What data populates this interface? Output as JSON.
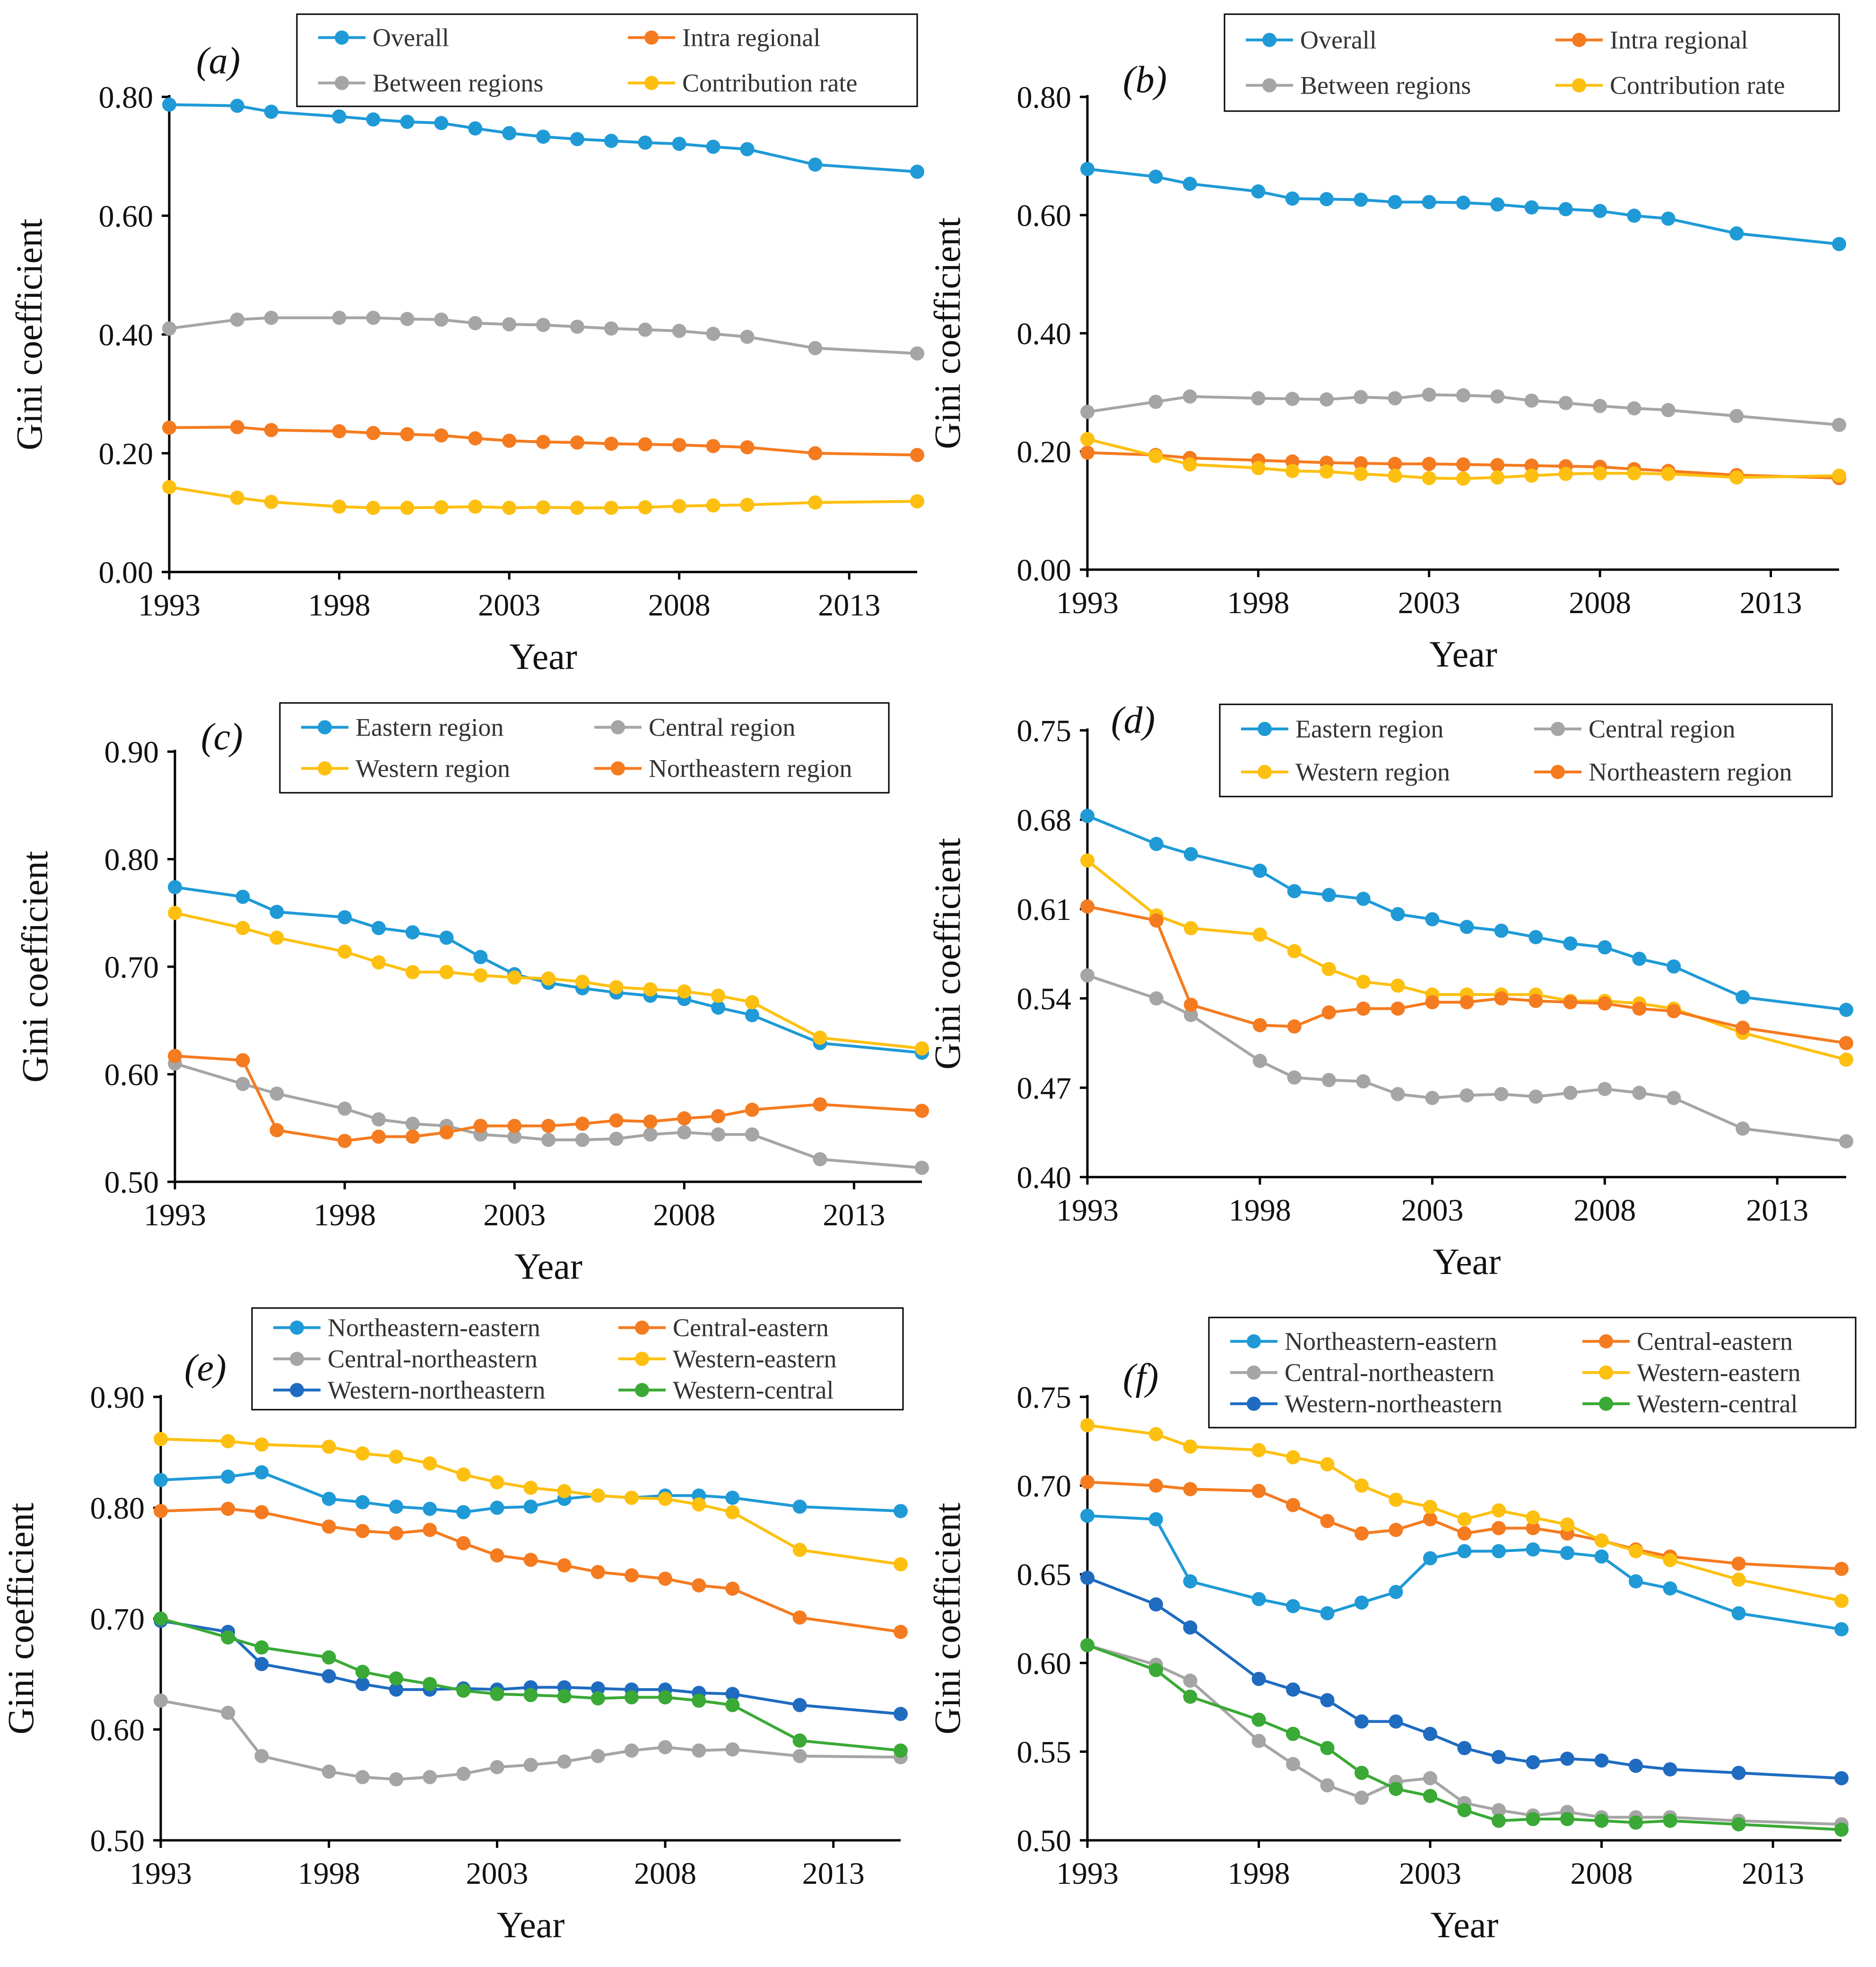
{
  "chart_data": [
    {
      "id": "a",
      "panel_label": "(a)",
      "type": "line",
      "xlabel": "Year",
      "ylabel": "Gini coefficient",
      "xlim": [
        1993,
        2015
      ],
      "ylim": [
        0.0,
        0.8
      ],
      "xticks": [
        1993,
        1998,
        2003,
        2008,
        2013
      ],
      "yticks": [
        0.0,
        0.2,
        0.4,
        0.6,
        0.8
      ],
      "ytick_labels": [
        "0.00",
        "0.20",
        "0.40",
        "0.60",
        "0.80"
      ],
      "legend_columns": 2,
      "x": [
        1993,
        1995,
        1996,
        1998,
        1999,
        2000,
        2001,
        2002,
        2003,
        2004,
        2005,
        2006,
        2007,
        2008,
        2009,
        2010,
        2012,
        2015
      ],
      "series": [
        {
          "name": "Overall",
          "color": "#1f9ad6",
          "values": [
            0.787,
            0.785,
            0.775,
            0.767,
            0.762,
            0.758,
            0.756,
            0.747,
            0.739,
            0.733,
            0.729,
            0.726,
            0.723,
            0.721,
            0.716,
            0.712,
            0.686,
            0.674
          ]
        },
        {
          "name": "Intra regional",
          "color": "#f47b20",
          "values": [
            0.243,
            0.244,
            0.239,
            0.237,
            0.234,
            0.232,
            0.23,
            0.225,
            0.221,
            0.219,
            0.218,
            0.216,
            0.215,
            0.214,
            0.212,
            0.21,
            0.2,
            0.197
          ]
        },
        {
          "name": "Between regions",
          "color": "#a5a5a5",
          "values": [
            0.41,
            0.425,
            0.428,
            0.428,
            0.428,
            0.426,
            0.425,
            0.419,
            0.417,
            0.416,
            0.413,
            0.41,
            0.408,
            0.406,
            0.401,
            0.396,
            0.377,
            0.368
          ]
        },
        {
          "name": "Contribution rate",
          "color": "#fdc010",
          "values": [
            0.143,
            0.125,
            0.118,
            0.11,
            0.108,
            0.108,
            0.109,
            0.11,
            0.108,
            0.109,
            0.108,
            0.108,
            0.109,
            0.111,
            0.112,
            0.113,
            0.117,
            0.119
          ]
        }
      ]
    },
    {
      "id": "b",
      "panel_label": "(b)",
      "type": "line",
      "xlabel": "Year",
      "ylabel": "Gini coefficient",
      "xlim": [
        1993,
        2015
      ],
      "ylim": [
        0.0,
        0.8
      ],
      "xticks": [
        1993,
        1998,
        2003,
        2008,
        2013
      ],
      "yticks": [
        0.0,
        0.2,
        0.4,
        0.6,
        0.8
      ],
      "ytick_labels": [
        "0.00",
        "0.20",
        "0.40",
        "0.60",
        "0.80"
      ],
      "legend_columns": 2,
      "x": [
        1993,
        1995,
        1996,
        1998,
        1999,
        2000,
        2001,
        2002,
        2003,
        2004,
        2005,
        2006,
        2007,
        2008,
        2009,
        2010,
        2012,
        2015
      ],
      "series": [
        {
          "name": "Overall",
          "color": "#1f9ad6",
          "values": [
            0.678,
            0.665,
            0.653,
            0.64,
            0.628,
            0.627,
            0.626,
            0.622,
            0.622,
            0.621,
            0.618,
            0.613,
            0.61,
            0.607,
            0.599,
            0.594,
            0.569,
            0.551
          ]
        },
        {
          "name": "Intra regional",
          "color": "#f47b20",
          "values": [
            0.198,
            0.194,
            0.189,
            0.185,
            0.183,
            0.181,
            0.18,
            0.179,
            0.179,
            0.178,
            0.177,
            0.176,
            0.175,
            0.174,
            0.17,
            0.167,
            0.16,
            0.155
          ]
        },
        {
          "name": "Between regions",
          "color": "#a5a5a5",
          "values": [
            0.267,
            0.284,
            0.293,
            0.29,
            0.289,
            0.288,
            0.292,
            0.29,
            0.296,
            0.295,
            0.293,
            0.286,
            0.282,
            0.277,
            0.273,
            0.27,
            0.26,
            0.245
          ]
        },
        {
          "name": "Contribution rate",
          "color": "#fdc010",
          "values": [
            0.221,
            0.192,
            0.178,
            0.172,
            0.167,
            0.166,
            0.162,
            0.159,
            0.155,
            0.154,
            0.156,
            0.159,
            0.162,
            0.163,
            0.163,
            0.162,
            0.156,
            0.159
          ]
        }
      ]
    },
    {
      "id": "c",
      "panel_label": "(c)",
      "type": "line",
      "xlabel": "Year",
      "ylabel": "Gini coefficient",
      "xlim": [
        1993,
        2015
      ],
      "ylim": [
        0.5,
        0.9
      ],
      "xticks": [
        1993,
        1998,
        2003,
        2008,
        2013
      ],
      "yticks": [
        0.5,
        0.6,
        0.7,
        0.8,
        0.9
      ],
      "ytick_labels": [
        "0.50",
        "0.60",
        "0.70",
        "0.80",
        "0.90"
      ],
      "legend_columns": 2,
      "x": [
        1993,
        1995,
        1996,
        1998,
        1999,
        2000,
        2001,
        2002,
        2003,
        2004,
        2005,
        2006,
        2007,
        2008,
        2009,
        2010,
        2012,
        2015
      ],
      "series": [
        {
          "name": "Eastern region",
          "color": "#1f9ad6",
          "values": [
            0.774,
            0.765,
            0.751,
            0.746,
            0.736,
            0.732,
            0.727,
            0.709,
            0.693,
            0.685,
            0.68,
            0.676,
            0.673,
            0.67,
            0.662,
            0.655,
            0.629,
            0.62
          ]
        },
        {
          "name": "Central region",
          "color": "#a5a5a5",
          "values": [
            0.61,
            0.591,
            0.582,
            0.568,
            0.558,
            0.554,
            0.552,
            0.544,
            0.542,
            0.539,
            0.539,
            0.54,
            0.544,
            0.546,
            0.544,
            0.544,
            0.521,
            0.513
          ]
        },
        {
          "name": "Western region",
          "color": "#fdc010",
          "values": [
            0.75,
            0.736,
            0.727,
            0.714,
            0.704,
            0.695,
            0.695,
            0.692,
            0.69,
            0.689,
            0.686,
            0.681,
            0.679,
            0.677,
            0.673,
            0.667,
            0.634,
            0.624
          ]
        },
        {
          "name": "Northeastern region",
          "color": "#f47b20",
          "values": [
            0.617,
            0.613,
            0.548,
            0.538,
            0.542,
            0.542,
            0.546,
            0.552,
            0.552,
            0.552,
            0.554,
            0.557,
            0.556,
            0.559,
            0.561,
            0.567,
            0.572,
            0.566
          ]
        }
      ]
    },
    {
      "id": "d",
      "panel_label": "(d)",
      "type": "line",
      "xlabel": "Year",
      "ylabel": "Gini coefficient",
      "xlim": [
        1993,
        2015
      ],
      "ylim": [
        0.4,
        0.75
      ],
      "xticks": [
        1993,
        1998,
        2003,
        2008,
        2013
      ],
      "yticks": [
        0.4,
        0.47,
        0.54,
        0.61,
        0.68,
        0.75
      ],
      "ytick_labels": [
        "0.40",
        "0.47",
        "0.54",
        "0.61",
        "0.68",
        "0.75"
      ],
      "legend_columns": 2,
      "x": [
        1993,
        1995,
        1996,
        1998,
        1999,
        2000,
        2001,
        2002,
        2003,
        2004,
        2005,
        2006,
        2007,
        2008,
        2009,
        2010,
        2012,
        2015
      ],
      "series": [
        {
          "name": "Eastern region",
          "color": "#1f9ad6",
          "values": [
            0.683,
            0.661,
            0.653,
            0.64,
            0.624,
            0.621,
            0.618,
            0.606,
            0.602,
            0.596,
            0.593,
            0.588,
            0.583,
            0.58,
            0.571,
            0.565,
            0.541,
            0.531
          ]
        },
        {
          "name": "Central region",
          "color": "#a5a5a5",
          "values": [
            0.558,
            0.54,
            0.527,
            0.491,
            0.478,
            0.476,
            0.475,
            0.465,
            0.462,
            0.464,
            0.465,
            0.463,
            0.466,
            0.469,
            0.466,
            0.462,
            0.438,
            0.428
          ]
        },
        {
          "name": "Western region",
          "color": "#fdc010",
          "values": [
            0.648,
            0.605,
            0.595,
            0.59,
            0.577,
            0.563,
            0.553,
            0.55,
            0.543,
            0.543,
            0.543,
            0.543,
            0.538,
            0.538,
            0.536,
            0.532,
            0.513,
            0.492
          ]
        },
        {
          "name": "Northeastern region",
          "color": "#f47b20",
          "values": [
            0.612,
            0.601,
            0.535,
            0.519,
            0.518,
            0.529,
            0.532,
            0.532,
            0.537,
            0.537,
            0.54,
            0.538,
            0.537,
            0.536,
            0.532,
            0.53,
            0.517,
            0.505
          ]
        }
      ]
    },
    {
      "id": "e",
      "panel_label": "(e)",
      "type": "line",
      "xlabel": "Year",
      "ylabel": "Gini coefficient",
      "xlim": [
        1993,
        2015
      ],
      "ylim": [
        0.5,
        0.9
      ],
      "xticks": [
        1993,
        1998,
        2003,
        2008,
        2013
      ],
      "yticks": [
        0.5,
        0.6,
        0.7,
        0.8,
        0.9
      ],
      "ytick_labels": [
        "0.50",
        "0.60",
        "0.70",
        "0.80",
        "0.90"
      ],
      "legend_columns": 2,
      "x": [
        1993,
        1995,
        1996,
        1998,
        1999,
        2000,
        2001,
        2002,
        2003,
        2004,
        2005,
        2006,
        2007,
        2008,
        2009,
        2010,
        2012,
        2015
      ],
      "series": [
        {
          "name": "Northeastern-eastern",
          "color": "#1f9ad6",
          "values": [
            0.825,
            0.828,
            0.832,
            0.808,
            0.805,
            0.801,
            0.799,
            0.796,
            0.8,
            0.801,
            0.808,
            0.811,
            0.809,
            0.811,
            0.811,
            0.809,
            0.801,
            0.797
          ]
        },
        {
          "name": "Central-eastern",
          "color": "#f47b20",
          "values": [
            0.797,
            0.799,
            0.796,
            0.783,
            0.779,
            0.777,
            0.78,
            0.768,
            0.757,
            0.753,
            0.748,
            0.742,
            0.739,
            0.736,
            0.73,
            0.727,
            0.701,
            0.688
          ]
        },
        {
          "name": "Central-northeastern",
          "color": "#a5a5a5",
          "values": [
            0.626,
            0.615,
            0.576,
            0.562,
            0.557,
            0.555,
            0.557,
            0.56,
            0.566,
            0.568,
            0.571,
            0.576,
            0.581,
            0.584,
            0.581,
            0.582,
            0.576,
            0.575
          ]
        },
        {
          "name": "Western-eastern",
          "color": "#fdc010",
          "values": [
            0.862,
            0.86,
            0.857,
            0.855,
            0.849,
            0.846,
            0.84,
            0.83,
            0.823,
            0.818,
            0.815,
            0.811,
            0.809,
            0.808,
            0.803,
            0.796,
            0.762,
            0.749
          ]
        },
        {
          "name": "Western-northeastern",
          "color": "#1f6bc0",
          "values": [
            0.698,
            0.688,
            0.659,
            0.648,
            0.641,
            0.636,
            0.636,
            0.637,
            0.636,
            0.638,
            0.638,
            0.637,
            0.636,
            0.636,
            0.633,
            0.632,
            0.622,
            0.614
          ]
        },
        {
          "name": "Western-central",
          "color": "#3aa935",
          "values": [
            0.7,
            0.683,
            0.674,
            0.665,
            0.652,
            0.646,
            0.641,
            0.635,
            0.632,
            0.631,
            0.63,
            0.628,
            0.629,
            0.629,
            0.626,
            0.622,
            0.59,
            0.581
          ]
        }
      ]
    },
    {
      "id": "f",
      "panel_label": "(f)",
      "type": "line",
      "xlabel": "Year",
      "ylabel": "Gini coefficient",
      "xlim": [
        1993,
        2015
      ],
      "ylim": [
        0.5,
        0.75
      ],
      "xticks": [
        1993,
        1998,
        2003,
        2008,
        2013
      ],
      "yticks": [
        0.5,
        0.55,
        0.6,
        0.65,
        0.7,
        0.75
      ],
      "ytick_labels": [
        "0.50",
        "0.55",
        "0.60",
        "0.65",
        "0.70",
        "0.75"
      ],
      "legend_columns": 2,
      "x": [
        1993,
        1995,
        1996,
        1998,
        1999,
        2000,
        2001,
        2002,
        2003,
        2004,
        2005,
        2006,
        2007,
        2008,
        2009,
        2010,
        2012,
        2015
      ],
      "series": [
        {
          "name": "Northeastern-eastern",
          "color": "#1f9ad6",
          "values": [
            0.683,
            0.681,
            0.646,
            0.636,
            0.632,
            0.628,
            0.634,
            0.64,
            0.659,
            0.663,
            0.663,
            0.664,
            0.662,
            0.66,
            0.646,
            0.642,
            0.628,
            0.619
          ]
        },
        {
          "name": "Central-eastern",
          "color": "#f47b20",
          "values": [
            0.702,
            0.7,
            0.698,
            0.697,
            0.689,
            0.68,
            0.673,
            0.675,
            0.681,
            0.673,
            0.676,
            0.676,
            0.673,
            0.669,
            0.664,
            0.66,
            0.656,
            0.653
          ]
        },
        {
          "name": "Central-northeastern",
          "color": "#a5a5a5",
          "values": [
            0.61,
            0.599,
            0.59,
            0.556,
            0.543,
            0.531,
            0.524,
            0.533,
            0.535,
            0.521,
            0.517,
            0.514,
            0.516,
            0.513,
            0.513,
            0.513,
            0.511,
            0.509
          ]
        },
        {
          "name": "Western-eastern",
          "color": "#fdc010",
          "values": [
            0.734,
            0.729,
            0.722,
            0.72,
            0.716,
            0.712,
            0.7,
            0.692,
            0.688,
            0.681,
            0.686,
            0.682,
            0.678,
            0.669,
            0.663,
            0.658,
            0.647,
            0.635
          ]
        },
        {
          "name": "Western-northeastern",
          "color": "#1f6bc0",
          "values": [
            0.648,
            0.633,
            0.62,
            0.591,
            0.585,
            0.579,
            0.567,
            0.567,
            0.56,
            0.552,
            0.547,
            0.544,
            0.546,
            0.545,
            0.542,
            0.54,
            0.538,
            0.535
          ]
        },
        {
          "name": "Western-central",
          "color": "#3aa935",
          "values": [
            0.61,
            0.596,
            0.581,
            0.568,
            0.56,
            0.552,
            0.538,
            0.529,
            0.525,
            0.517,
            0.511,
            0.512,
            0.512,
            0.511,
            0.51,
            0.511,
            0.509,
            0.506
          ]
        }
      ]
    }
  ]
}
